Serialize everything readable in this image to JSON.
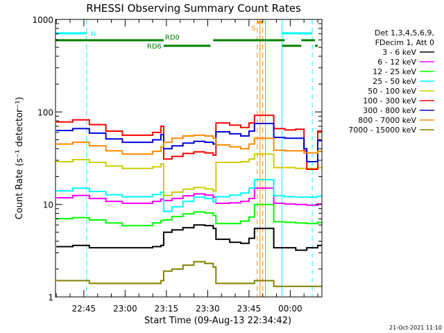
{
  "chart_data": {
    "type": "line",
    "title": "RHESSI Observing Summary Count Rates",
    "xlabel": "Start Time (09-Aug-13 22:34:42)",
    "ylabel": "Count Rate (s⁻¹ detector⁻¹)",
    "yscale": "log",
    "ylim": [
      1,
      1000
    ],
    "xlim": [
      "22:34:42",
      "00:11:30"
    ],
    "y_ticks": [
      "1",
      "10",
      "100",
      "1000"
    ],
    "x_ticks": [
      "22:45",
      "23:00",
      "23:15",
      "23:30",
      "23:45",
      "00:00"
    ],
    "x": [
      "22:35",
      "22:41",
      "22:47",
      "22:53",
      "22:59",
      "23:05",
      "23:10",
      "23:13",
      "23:14",
      "23:17",
      "23:21",
      "23:25",
      "23:29",
      "23:32",
      "23:33",
      "23:38",
      "23:42",
      "23:45",
      "23:47",
      "23:54",
      "23:58",
      "00:02",
      "00:05",
      "00:06",
      "00:08",
      "00:10"
    ],
    "series": [
      {
        "name": "3 - 6 keV",
        "color": "#000000",
        "values": [
          3.5,
          3.6,
          3.4,
          3.4,
          3.4,
          3.4,
          3.5,
          3.6,
          5.0,
          5.3,
          5.6,
          6.0,
          5.9,
          5.5,
          4.2,
          3.9,
          3.8,
          4.3,
          5.5,
          3.4,
          3.4,
          3.2,
          3.2,
          3.4,
          3.4,
          3.6
        ]
      },
      {
        "name": "6 - 12 keV",
        "color": "#ff00ff",
        "values": [
          11.8,
          12.5,
          11.6,
          10.8,
          10.3,
          10.3,
          10.8,
          11.4,
          11.0,
          11.6,
          12.4,
          13.0,
          12.6,
          12.0,
          10.3,
          10.4,
          10.8,
          11.6,
          15.0,
          10.3,
          10.1,
          10.0,
          10.0,
          9.8,
          9.8,
          10.1
        ]
      },
      {
        "name": "12 - 25 keV",
        "color": "#00ff00",
        "values": [
          7.0,
          7.2,
          6.8,
          6.3,
          5.9,
          5.9,
          6.3,
          6.7,
          6.8,
          7.4,
          7.9,
          8.3,
          8.1,
          7.6,
          6.2,
          6.2,
          6.6,
          7.3,
          10.0,
          6.5,
          6.4,
          6.3,
          6.3,
          6.2,
          6.2,
          6.4
        ]
      },
      {
        "name": "25 - 50 keV",
        "color": "#00ffff",
        "values": [
          14.0,
          15.0,
          13.8,
          12.7,
          12.1,
          12.1,
          12.8,
          13.6,
          8.4,
          9.4,
          10.8,
          12.0,
          11.6,
          10.6,
          12.1,
          12.6,
          13.3,
          15.0,
          18.5,
          12.4,
          12.1,
          12.0,
          12.0,
          12.0,
          12.0,
          12.3
        ]
      },
      {
        "name": "50 - 100 keV",
        "color": "#cccc00",
        "values": [
          29.0,
          30.5,
          28.5,
          26.0,
          24.5,
          24.5,
          25.5,
          27.5,
          12.5,
          13.6,
          14.6,
          15.2,
          14.7,
          14.0,
          28.5,
          28.5,
          29.0,
          31.0,
          35.0,
          25.0,
          25.0,
          24.5,
          24.5,
          24.5,
          24.5,
          25.0
        ]
      },
      {
        "name": "100 - 300 keV",
        "color": "#ff0000",
        "values": [
          78,
          82,
          73,
          62,
          56,
          56,
          60,
          70,
          31.0,
          33.0,
          35.5,
          37.0,
          36.0,
          34.0,
          76,
          72,
          68,
          76,
          92,
          66,
          64,
          65,
          38.0,
          24.0,
          24.0,
          62
        ]
      },
      {
        "name": "300 - 800 keV",
        "color": "#0000dd",
        "values": [
          63,
          66,
          59,
          51,
          47,
          47,
          50,
          57,
          40.0,
          43.0,
          46.0,
          48.0,
          47.0,
          45.0,
          61,
          58,
          55,
          62,
          75,
          53,
          52,
          52,
          40.0,
          29.0,
          29.0,
          49
        ]
      },
      {
        "name": "800 - 7000 keV",
        "color": "#ff8800",
        "values": [
          45.0,
          47.0,
          43.0,
          38.0,
          35.0,
          35.0,
          37.5,
          42.0,
          47.0,
          52.0,
          55.0,
          56.0,
          55.0,
          52.0,
          44.0,
          42.0,
          40.0,
          45.0,
          52.0,
          38.5,
          38.0,
          38.0,
          36.0,
          36.0,
          36.0,
          37.5
        ]
      },
      {
        "name": "7000 - 15000 keV",
        "color": "#808000",
        "values": [
          1.5,
          1.5,
          1.4,
          1.4,
          1.4,
          1.4,
          1.4,
          1.5,
          1.9,
          2.0,
          2.2,
          2.4,
          2.3,
          2.1,
          1.4,
          1.4,
          1.4,
          1.4,
          1.5,
          1.3,
          1.3,
          1.3,
          1.3,
          1.3,
          1.3,
          1.3
        ]
      }
    ],
    "vertical_markers": [
      {
        "time": "22:34:42",
        "style": "solid",
        "color": "#00ffff"
      },
      {
        "time": "22:46",
        "style": "dashed",
        "color": "#00ffff"
      },
      {
        "time": "23:48",
        "style": "dashed",
        "color": "#ff8800"
      },
      {
        "time": "23:49",
        "style": "solid",
        "color": "#ff8800"
      },
      {
        "time": "23:50",
        "style": "dashed",
        "color": "#ff8800"
      },
      {
        "time": "23:51",
        "style": "solid",
        "color": "#00ff00"
      },
      {
        "time": "23:57",
        "style": "solid",
        "color": "#00ffff"
      },
      {
        "time": "00:08",
        "style": "dashed",
        "color": "#00ffff"
      }
    ],
    "flag_bars": [
      {
        "label": "N",
        "color": "#00ffff",
        "intervals": [
          [
            "22:34:42",
            "22:46"
          ],
          [
            "23:57",
            "00:08"
          ]
        ]
      },
      {
        "label": "S",
        "color": "#ff8800",
        "intervals": [
          [
            "23:48",
            "23:50"
          ]
        ]
      },
      {
        "label": "RD0",
        "color": "#008000",
        "intervals": [
          [
            "22:34:42",
            "23:14"
          ],
          [
            "23:32",
            "23:58"
          ],
          [
            "00:04",
            "00:09"
          ]
        ]
      },
      {
        "label": "RD6",
        "color": "#008000",
        "intervals": [
          [
            "23:14",
            "23:31"
          ],
          [
            "23:57",
            "00:04"
          ],
          [
            "00:09",
            "00:10"
          ]
        ]
      }
    ],
    "legend": {
      "placement": "right",
      "header_lines": [
        "Det 1,3,4,5,6,9,",
        "FDecim 1, Att 0"
      ]
    },
    "grid": false,
    "footer_date": "21-Oct-2021 11:10"
  }
}
